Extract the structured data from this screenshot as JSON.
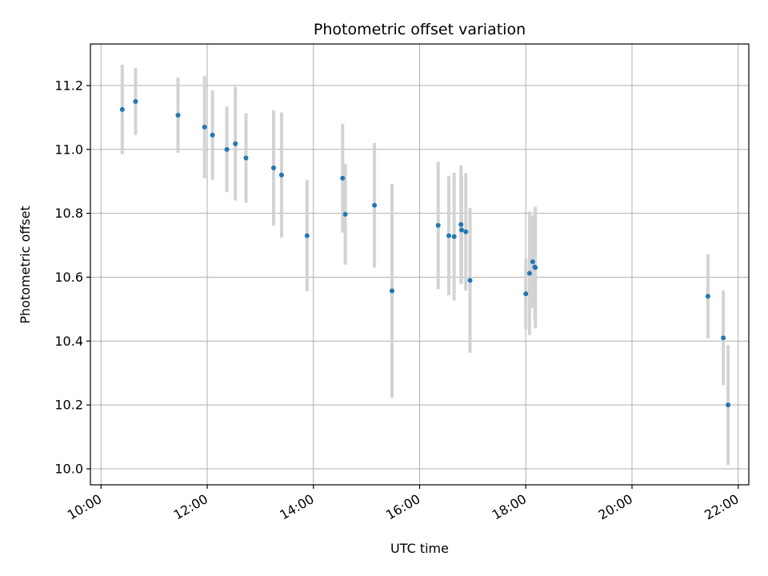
{
  "chart_data": {
    "type": "scatter",
    "title": "Photometric offset variation",
    "xlabel": "UTC time",
    "ylabel": "Photometric offset",
    "x_unit": "hours (UTC, 24h clock)",
    "xlim": [
      9.8,
      22.2
    ],
    "ylim": [
      9.95,
      11.33
    ],
    "x_ticks": [
      {
        "value": 10,
        "label": "10:00"
      },
      {
        "value": 12,
        "label": "12:00"
      },
      {
        "value": 14,
        "label": "14:00"
      },
      {
        "value": 16,
        "label": "16:00"
      },
      {
        "value": 18,
        "label": "18:00"
      },
      {
        "value": 20,
        "label": "20:00"
      },
      {
        "value": 22,
        "label": "22:00"
      }
    ],
    "y_ticks": [
      {
        "value": 10.0,
        "label": "10.0"
      },
      {
        "value": 10.2,
        "label": "10.2"
      },
      {
        "value": 10.4,
        "label": "10.4"
      },
      {
        "value": 10.6,
        "label": "10.6"
      },
      {
        "value": 10.8,
        "label": "10.8"
      },
      {
        "value": 11.0,
        "label": "11.0"
      },
      {
        "value": 11.2,
        "label": "11.2"
      }
    ],
    "grid": true,
    "marker_color": "#1f77b4",
    "errorbar_color": "#d3d3d3",
    "points": [
      {
        "x": 10.4,
        "y": 11.125,
        "err": 0.14
      },
      {
        "x": 10.65,
        "y": 11.15,
        "err": 0.105
      },
      {
        "x": 11.45,
        "y": 11.107,
        "err": 0.118
      },
      {
        "x": 11.95,
        "y": 11.07,
        "err": 0.16
      },
      {
        "x": 12.1,
        "y": 11.045,
        "err": 0.14
      },
      {
        "x": 12.37,
        "y": 11.0,
        "err": 0.134
      },
      {
        "x": 12.53,
        "y": 11.018,
        "err": 0.178
      },
      {
        "x": 12.73,
        "y": 10.973,
        "err": 0.14
      },
      {
        "x": 13.25,
        "y": 10.942,
        "err": 0.18
      },
      {
        "x": 13.4,
        "y": 10.92,
        "err": 0.196
      },
      {
        "x": 13.88,
        "y": 10.73,
        "err": 0.174
      },
      {
        "x": 14.55,
        "y": 10.91,
        "err": 0.17
      },
      {
        "x": 14.6,
        "y": 10.797,
        "err": 0.158
      },
      {
        "x": 15.15,
        "y": 10.825,
        "err": 0.195
      },
      {
        "x": 15.48,
        "y": 10.557,
        "err": 0.335
      },
      {
        "x": 16.35,
        "y": 10.762,
        "err": 0.2
      },
      {
        "x": 16.55,
        "y": 10.73,
        "err": 0.187
      },
      {
        "x": 16.65,
        "y": 10.727,
        "err": 0.2
      },
      {
        "x": 16.78,
        "y": 10.765,
        "err": 0.185
      },
      {
        "x": 16.79,
        "y": 10.748,
        "err": 0.17
      },
      {
        "x": 16.87,
        "y": 10.742,
        "err": 0.184
      },
      {
        "x": 16.95,
        "y": 10.59,
        "err": 0.227
      },
      {
        "x": 18.0,
        "y": 10.548,
        "err": 0.11
      },
      {
        "x": 18.07,
        "y": 10.612,
        "err": 0.193
      },
      {
        "x": 18.13,
        "y": 10.648,
        "err": 0.145
      },
      {
        "x": 18.17,
        "y": 10.632,
        "err": 0.163
      },
      {
        "x": 18.18,
        "y": 10.63,
        "err": 0.19
      },
      {
        "x": 21.43,
        "y": 10.54,
        "err": 0.132
      },
      {
        "x": 21.72,
        "y": 10.41,
        "err": 0.148
      },
      {
        "x": 21.81,
        "y": 10.2,
        "err": 0.188
      }
    ]
  }
}
